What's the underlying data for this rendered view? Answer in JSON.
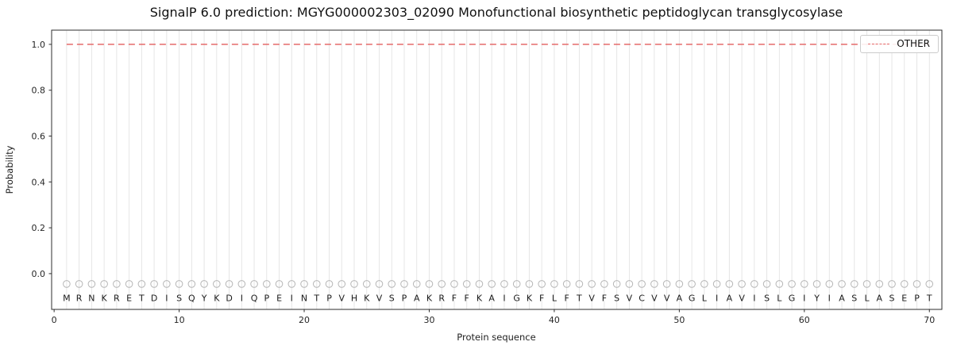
{
  "chart_data": {
    "type": "line",
    "title": "SignalP 6.0 prediction: MGYG000002303_02090 Monofunctional biosynthetic peptidoglycan transglycosylase",
    "xlabel": "Protein sequence",
    "ylabel": "Probability",
    "xlim": [
      -0.2,
      71.0
    ],
    "ylim": [
      -0.156,
      1.062
    ],
    "x_tick_labels": [
      "0",
      "10",
      "20",
      "30",
      "40",
      "50",
      "60",
      "70"
    ],
    "y_tick_labels": [
      "0.0",
      "0.2",
      "0.4",
      "0.6",
      "0.8",
      "1.0"
    ],
    "grid": "vertical-gridline-per-residue",
    "legend": {
      "position": "upper right",
      "entries": [
        {
          "label": "OTHER",
          "color": "#e56a6a",
          "style": "dashed"
        }
      ]
    },
    "sequence": "MRNKRETDISQYKDIQPEINTPVHKVSPAKRFFKAIGKFLFTVFSVCVVAGLIAVISLGIYIASLASEPT",
    "series": [
      {
        "name": "OTHER",
        "x": [
          1,
          2,
          3,
          4,
          5,
          6,
          7,
          8,
          9,
          10,
          11,
          12,
          13,
          14,
          15,
          16,
          17,
          18,
          19,
          20,
          21,
          22,
          23,
          24,
          25,
          26,
          27,
          28,
          29,
          30,
          31,
          32,
          33,
          34,
          35,
          36,
          37,
          38,
          39,
          40,
          41,
          42,
          43,
          44,
          45,
          46,
          47,
          48,
          49,
          50,
          51,
          52,
          53,
          54,
          55,
          56,
          57,
          58,
          59,
          60,
          61,
          62,
          63,
          64,
          65,
          66,
          67,
          68,
          69,
          70
        ],
        "values": [
          1.0,
          1.0,
          1.0,
          1.0,
          1.0,
          1.0,
          1.0,
          1.0,
          1.0,
          1.0,
          1.0,
          1.0,
          1.0,
          1.0,
          1.0,
          1.0,
          1.0,
          1.0,
          1.0,
          1.0,
          1.0,
          1.0,
          1.0,
          1.0,
          1.0,
          1.0,
          1.0,
          1.0,
          1.0,
          1.0,
          1.0,
          1.0,
          1.0,
          1.0,
          1.0,
          1.0,
          1.0,
          1.0,
          1.0,
          1.0,
          1.0,
          1.0,
          1.0,
          1.0,
          1.0,
          1.0,
          1.0,
          1.0,
          1.0,
          1.0,
          1.0,
          1.0,
          1.0,
          1.0,
          1.0,
          1.0,
          1.0,
          1.0,
          1.0,
          1.0,
          1.0,
          1.0,
          1.0,
          1.0,
          1.0,
          1.0,
          1.0,
          1.0,
          1.0,
          1.0
        ]
      }
    ],
    "marker_y": -0.045,
    "letter_y": -0.105,
    "colors": {
      "other_line": "#e56a6a",
      "grid": "#e3e3e3",
      "marker": "#b5b5b5",
      "spine": "#2e2e2e",
      "text": "#1a1a1a"
    }
  }
}
